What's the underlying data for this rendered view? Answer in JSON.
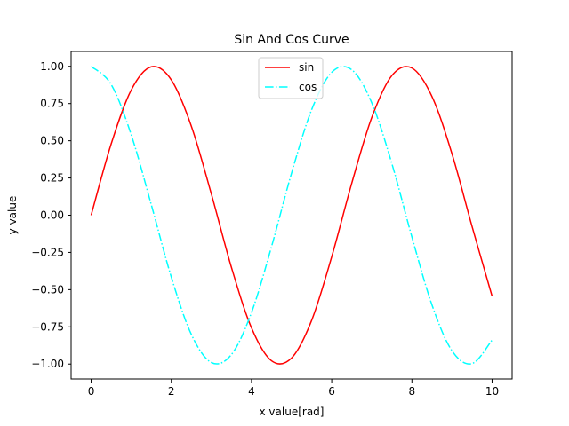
{
  "chart_data": {
    "type": "line",
    "title": "Sin And Cos Curve",
    "xlabel": "x value[rad]",
    "ylabel": "y value",
    "xlim": [
      -0.5,
      10.5
    ],
    "ylim": [
      -1.1,
      1.1
    ],
    "xticks": [
      0,
      2,
      4,
      6,
      8,
      10
    ],
    "xtick_labels": [
      "0",
      "2",
      "4",
      "6",
      "8",
      "10"
    ],
    "yticks": [
      -1.0,
      -0.75,
      -0.5,
      -0.25,
      0.0,
      0.25,
      0.5,
      0.75,
      1.0
    ],
    "ytick_labels": [
      "−1.00",
      "−0.75",
      "−0.50",
      "−0.25",
      "0.00",
      "0.25",
      "0.50",
      "0.75",
      "1.00"
    ],
    "grid": false,
    "legend_position": "top-center",
    "x": [
      0.0,
      0.5,
      1.0,
      1.5,
      2.0,
      2.5,
      3.0,
      3.5,
      4.0,
      4.5,
      5.0,
      5.5,
      6.0,
      6.5,
      7.0,
      7.5,
      8.0,
      8.5,
      9.0,
      9.5,
      10.0
    ],
    "series": [
      {
        "name": "sin",
        "color": "#ff0000",
        "style": "solid",
        "values": [
          0.0,
          0.479,
          0.841,
          0.997,
          0.909,
          0.598,
          0.141,
          -0.351,
          -0.757,
          -0.978,
          -0.959,
          -0.706,
          -0.279,
          0.215,
          0.657,
          0.938,
          0.989,
          0.798,
          0.412,
          -0.075,
          -0.544
        ]
      },
      {
        "name": "cos",
        "color": "#00ffff",
        "style": "dashdot",
        "values": [
          1.0,
          0.878,
          0.54,
          0.071,
          -0.416,
          -0.801,
          -0.99,
          -0.936,
          -0.654,
          -0.211,
          0.284,
          0.709,
          0.96,
          0.977,
          0.754,
          0.347,
          -0.146,
          -0.602,
          -0.911,
          -0.997,
          -0.839
        ]
      }
    ]
  }
}
